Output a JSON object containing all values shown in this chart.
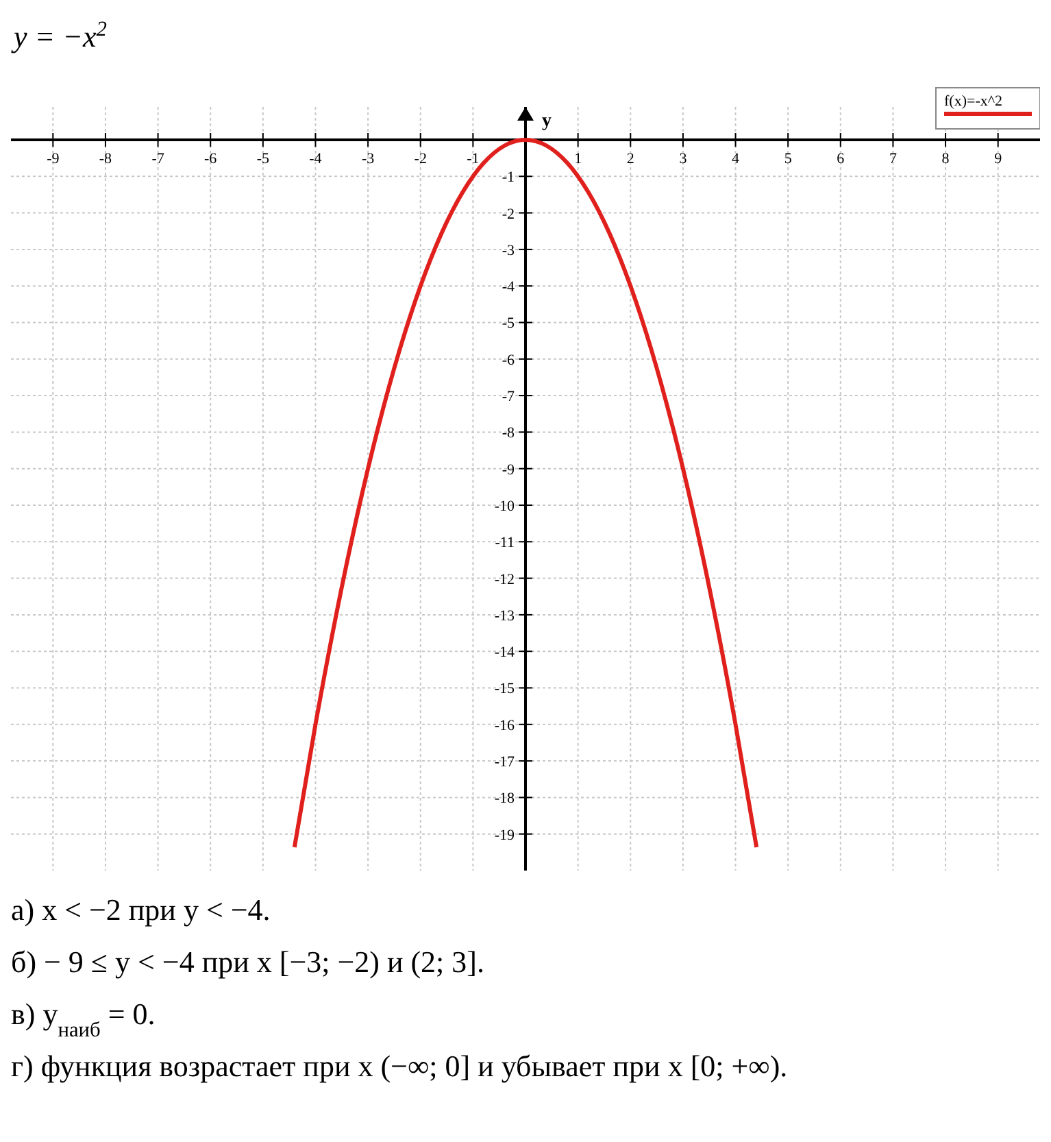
{
  "chart_data": {
    "type": "line",
    "title": "y = −x$^{2}$",
    "ylabel": "y",
    "x": [
      -4.4,
      -4,
      -3.6,
      -3.2,
      -2.8,
      -2.4,
      -2,
      -1.6,
      -1.2,
      -0.8,
      -0.4,
      0,
      0.4,
      0.8,
      1.2,
      1.6,
      2,
      2.4,
      2.8,
      3.2,
      3.6,
      4,
      4.4
    ],
    "series": [
      {
        "name": "f(x)=-x^2",
        "color": "#e0201c",
        "values": [
          -19.36,
          -16,
          -12.96,
          -10.24,
          -7.84,
          -5.76,
          -4,
          -2.56,
          -1.44,
          -0.64,
          -0.16,
          0,
          -0.16,
          -0.64,
          -1.44,
          -2.56,
          -4,
          -5.76,
          -7.84,
          -10.24,
          -12.96,
          -16,
          -19.36
        ]
      }
    ],
    "xlim": [
      -9.8,
      9.8
    ],
    "ylim": [
      -20,
      0.9
    ],
    "xticks": [
      -9,
      -8,
      -7,
      -6,
      -5,
      -4,
      -3,
      -2,
      -1,
      1,
      2,
      3,
      4,
      5,
      6,
      7,
      8,
      9
    ],
    "yticks": [
      -19,
      -18,
      -17,
      -16,
      -15,
      -14,
      -13,
      -12,
      -11,
      -10,
      -9,
      -8,
      -7,
      -6,
      -5,
      -4,
      -3,
      -2,
      -1
    ],
    "grid": true,
    "legend": "top right",
    "line_style": "solid",
    "annotations": [
      "а) x < −2 при y < −4.",
      "б) − 9 ≤ y < −4 при x [−3; −2) и (2; 3].",
      "в) y$_{наиб}$ = 0.",
      "г) функция возрастает при x (−∞; 0] и убывает при x [0; +∞)."
    ]
  }
}
